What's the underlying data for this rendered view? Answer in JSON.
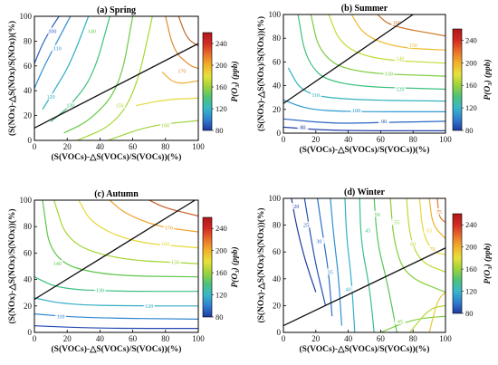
{
  "chart_data": [
    {
      "type": "contour",
      "title": "(a) Spring",
      "xlabel": "(S(VOCs)-△S(VOCs)/S(VOCs))(%)",
      "ylabel": "(S(NOx)-△S(NOx)/S(NOx))(%)",
      "xlim": [
        0,
        100
      ],
      "ylim": [
        0,
        100
      ],
      "x_ticks": [
        "0",
        "20",
        "40",
        "60",
        "80",
        "100"
      ],
      "y_ticks": [
        "0",
        "20",
        "40",
        "60",
        "80",
        "100"
      ],
      "contour_levels": [
        "100",
        "110",
        "120",
        "130",
        "140",
        "150",
        "160",
        "170"
      ],
      "ridge_line": [
        [
          0,
          10
        ],
        [
          100,
          78
        ]
      ],
      "colorbar": {
        "label": "P(O₃) (ppb)",
        "ticks": [
          "80",
          "120",
          "160",
          "200",
          "240"
        ],
        "range": [
          80,
          260
        ]
      }
    },
    {
      "type": "contour",
      "title": "(b) Summer",
      "xlabel": "(S(VOCs)-△S(VOCs)/S(VOCs))(%)",
      "ylabel": "(S(NOx)-△S(NOx)/S(NOx))(%)",
      "xlim": [
        0,
        100
      ],
      "ylim": [
        0,
        100
      ],
      "x_ticks": [
        "0",
        "20",
        "40",
        "60",
        "80",
        "100"
      ],
      "y_ticks": [
        "0",
        "20",
        "40",
        "60",
        "80",
        "100"
      ],
      "contour_levels": [
        "80",
        "90",
        "100",
        "110",
        "120",
        "130",
        "140",
        "150",
        "160"
      ],
      "ridge_line": [
        [
          0,
          25
        ],
        [
          80,
          100
        ]
      ],
      "colorbar": {
        "label": "P(O₃) (ppb)",
        "ticks": [
          "80",
          "120",
          "160",
          "200",
          "240"
        ],
        "range": [
          80,
          260
        ]
      }
    },
    {
      "type": "contour",
      "title": "(c) Autumn",
      "xlabel": "(S(VOCs)-△S(VOCs)/S(VOCs))(%)",
      "ylabel": "(S(NOx)-△S(NOx)/S(NOx))(%)",
      "xlim": [
        0,
        100
      ],
      "ylim": [
        0,
        100
      ],
      "x_ticks": [
        "0",
        "20",
        "40",
        "60",
        "80",
        "100"
      ],
      "y_ticks": [
        "0",
        "20",
        "40",
        "60",
        "80",
        "100"
      ],
      "contour_levels": [
        "110",
        "120",
        "130",
        "140",
        "150",
        "160",
        "170"
      ],
      "ridge_line": [
        [
          0,
          25
        ],
        [
          98,
          100
        ]
      ],
      "colorbar": {
        "label": "P(O₃) (ppb)",
        "ticks": [
          "80",
          "120",
          "160",
          "200",
          "240"
        ],
        "range": [
          80,
          260
        ]
      }
    },
    {
      "type": "contour",
      "title": "(d) Winter",
      "xlabel": "(S(VOCs)-△S(VOCs)/S(VOCs))(%)",
      "ylabel": "(S(NOx)-△S(NOx)/S(NOx))(%)",
      "xlim": [
        0,
        100
      ],
      "ylim": [
        0,
        100
      ],
      "x_ticks": [
        "0",
        "20",
        "40",
        "60",
        "80",
        "100"
      ],
      "y_ticks": [
        "0",
        "20",
        "40",
        "60",
        "80",
        "100"
      ],
      "contour_levels": [
        "20",
        "25",
        "30",
        "35",
        "40",
        "45",
        "50",
        "55",
        "60",
        "65",
        "70",
        "75",
        "80"
      ],
      "ridge_line": [
        [
          0,
          5
        ],
        [
          100,
          63
        ]
      ],
      "colorbar": {
        "label": "P(O₃) (ppb)",
        "ticks": [
          "80",
          "120",
          "160",
          "200",
          "240"
        ],
        "range": [
          80,
          260
        ]
      }
    }
  ],
  "colors": {
    "cmap": [
      "#1f3aa0",
      "#2f7fd0",
      "#38b7c9",
      "#4cc27a",
      "#9bd33a",
      "#e7e13a",
      "#f2b12b",
      "#e8702a",
      "#d22a22",
      "#b0171b"
    ],
    "ridge": "#111111"
  }
}
